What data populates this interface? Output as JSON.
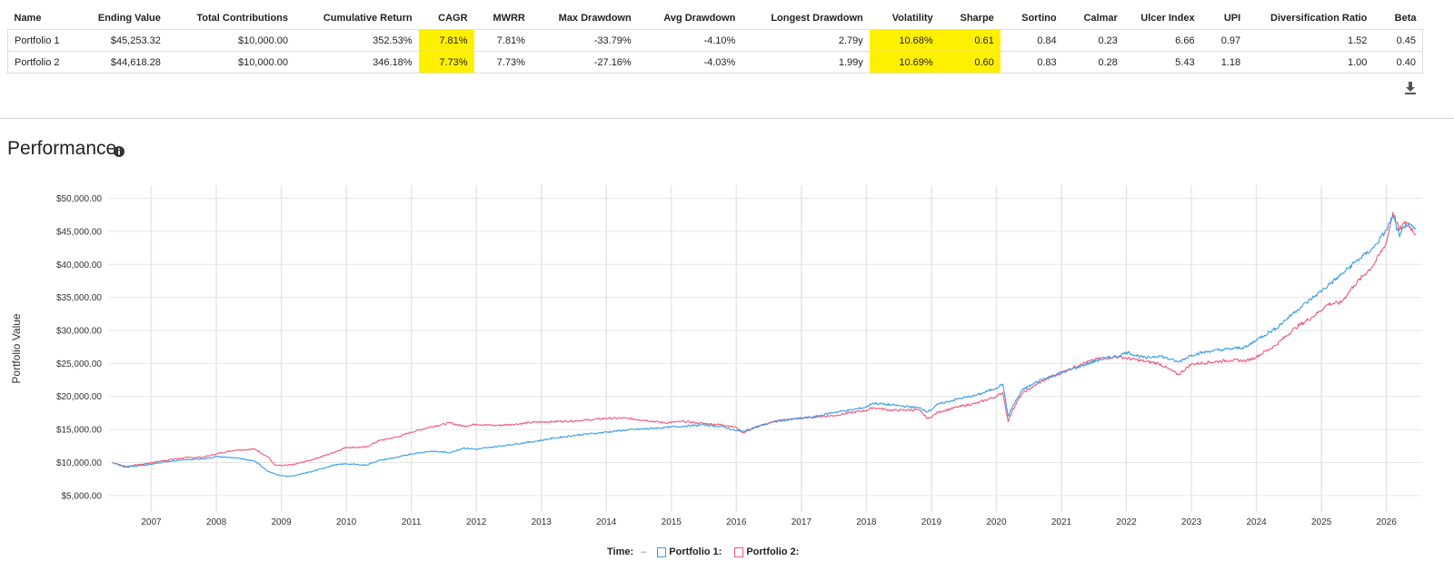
{
  "stats_table": {
    "columns": [
      "Name",
      "Ending Value",
      "Total Contributions",
      "Cumulative Return",
      "CAGR",
      "MWRR",
      "Max Drawdown",
      "Avg Drawdown",
      "Longest Drawdown",
      "Volatility",
      "Sharpe",
      "Sortino",
      "Calmar",
      "Ulcer Index",
      "UPI",
      "Diversification Ratio",
      "Beta"
    ],
    "highlighted_columns": [
      "CAGR",
      "Volatility",
      "Sharpe"
    ],
    "highlight_color": "#fff000",
    "rows": [
      [
        "Portfolio 1",
        "$45,253.32",
        "$10,000.00",
        "352.53%",
        "7.81%",
        "7.81%",
        "-33.79%",
        "-4.10%",
        "2.79y",
        "10.68%",
        "0.61",
        "0.84",
        "0.23",
        "6.66",
        "0.97",
        "1.52",
        "0.45"
      ],
      [
        "Portfolio 2",
        "$44,618.28",
        "$10,000.00",
        "346.18%",
        "7.73%",
        "7.73%",
        "-27.16%",
        "-4.03%",
        "1.99y",
        "10.69%",
        "0.60",
        "0.83",
        "0.28",
        "5.43",
        "1.18",
        "1.00",
        "0.40"
      ]
    ]
  },
  "icons": {
    "download": "download-icon",
    "info": "info-icon"
  },
  "performance": {
    "title": "Performance"
  },
  "legend": {
    "time_label": "Time:",
    "time_value": "–",
    "series": [
      "Portfolio 1:",
      "Portfolio 2:"
    ]
  },
  "chart_data": {
    "type": "line",
    "title": "Performance",
    "ylabel": "Portfolio Value",
    "xlabel": "",
    "xlim": [
      2006.35,
      2026.55
    ],
    "ylim": [
      2500,
      52000
    ],
    "yticks": [
      5000,
      10000,
      15000,
      20000,
      25000,
      30000,
      35000,
      40000,
      45000,
      50000
    ],
    "ytick_labels": [
      "$5,000.00",
      "$10,000.00",
      "$15,000.00",
      "$20,000.00",
      "$25,000.00",
      "$30,000.00",
      "$35,000.00",
      "$40,000.00",
      "$45,000.00",
      "$50,000.00"
    ],
    "xticks": [
      2007,
      2008,
      2009,
      2010,
      2011,
      2012,
      2013,
      2014,
      2015,
      2016,
      2017,
      2018,
      2019,
      2020,
      2021,
      2022,
      2023,
      2024,
      2025,
      2026
    ],
    "xtick_labels": [
      "2007",
      "2008",
      "2009",
      "2010",
      "2011",
      "2012",
      "2013",
      "2014",
      "2015",
      "2016",
      "2017",
      "2018",
      "2019",
      "2020",
      "2021",
      "2022",
      "2023",
      "2024",
      "2025",
      "2026"
    ],
    "grid": true,
    "series": [
      {
        "name": "Portfolio 1",
        "color": "#3a9ee4",
        "x": [
          2006.4,
          2006.6,
          2006.9,
          2007.2,
          2007.5,
          2007.8,
          2008.0,
          2008.3,
          2008.6,
          2008.8,
          2008.9,
          2009.0,
          2009.1,
          2009.2,
          2009.5,
          2009.8,
          2010.0,
          2010.3,
          2010.5,
          2010.8,
          2011.0,
          2011.3,
          2011.6,
          2011.8,
          2012.0,
          2012.3,
          2012.6,
          2012.9,
          2013.2,
          2013.5,
          2013.8,
          2014.0,
          2014.3,
          2014.6,
          2014.9,
          2015.2,
          2015.5,
          2015.8,
          2016.0,
          2016.1,
          2016.3,
          2016.6,
          2016.9,
          2017.2,
          2017.5,
          2017.8,
          2018.0,
          2018.1,
          2018.4,
          2018.8,
          2018.95,
          2019.1,
          2019.4,
          2019.7,
          2020.0,
          2020.1,
          2020.18,
          2020.25,
          2020.4,
          2020.7,
          2021.0,
          2021.3,
          2021.6,
          2021.9,
          2022.0,
          2022.3,
          2022.5,
          2022.8,
          2023.0,
          2023.3,
          2023.6,
          2023.85,
          2024.0,
          2024.3,
          2024.6,
          2024.9,
          2025.1,
          2025.3,
          2025.5,
          2025.8,
          2026.0,
          2026.1,
          2026.2,
          2026.3,
          2026.45
        ],
        "y": [
          10000,
          9300,
          9600,
          10100,
          10400,
          10500,
          10900,
          10700,
          10200,
          8600,
          8300,
          8000,
          7900,
          8000,
          8700,
          9600,
          9800,
          9600,
          10300,
          10800,
          11300,
          11700,
          11500,
          12200,
          12000,
          12400,
          12800,
          13200,
          13700,
          14100,
          14400,
          14600,
          14900,
          15100,
          15300,
          15500,
          15700,
          15400,
          14800,
          14700,
          15400,
          16200,
          16600,
          16900,
          17600,
          18000,
          18400,
          19000,
          18700,
          18300,
          17700,
          18800,
          19600,
          20200,
          21300,
          21900,
          17000,
          18500,
          21000,
          22600,
          23600,
          24600,
          25600,
          26200,
          26700,
          25800,
          26200,
          25200,
          26300,
          26900,
          27200,
          27500,
          28600,
          30300,
          32900,
          35200,
          36800,
          38400,
          40200,
          42500,
          45200,
          47400,
          44200,
          46100,
          45300
        ]
      },
      {
        "name": "Portfolio 2",
        "color": "#f1597a",
        "x": [
          2006.4,
          2006.6,
          2006.9,
          2007.2,
          2007.5,
          2007.8,
          2008.0,
          2008.3,
          2008.6,
          2008.8,
          2008.9,
          2009.0,
          2009.1,
          2009.2,
          2009.5,
          2009.8,
          2010.0,
          2010.3,
          2010.5,
          2010.8,
          2011.0,
          2011.3,
          2011.6,
          2011.8,
          2012.0,
          2012.3,
          2012.6,
          2012.9,
          2013.2,
          2013.5,
          2013.8,
          2014.0,
          2014.3,
          2014.6,
          2014.9,
          2015.2,
          2015.5,
          2015.8,
          2016.0,
          2016.1,
          2016.3,
          2016.6,
          2016.9,
          2017.2,
          2017.5,
          2017.8,
          2018.0,
          2018.1,
          2018.4,
          2018.8,
          2018.95,
          2019.1,
          2019.4,
          2019.7,
          2020.0,
          2020.1,
          2020.18,
          2020.25,
          2020.4,
          2020.7,
          2021.0,
          2021.3,
          2021.6,
          2021.9,
          2022.0,
          2022.3,
          2022.5,
          2022.8,
          2023.0,
          2023.3,
          2023.6,
          2023.85,
          2024.0,
          2024.3,
          2024.6,
          2024.9,
          2025.1,
          2025.3,
          2025.5,
          2025.8,
          2026.0,
          2026.1,
          2026.2,
          2026.3,
          2026.45
        ],
        "y": [
          10000,
          9400,
          9800,
          10300,
          10700,
          10800,
          11300,
          11900,
          12000,
          10800,
          9600,
          9500,
          9600,
          9700,
          10500,
          11500,
          12300,
          12300,
          13300,
          13900,
          14600,
          15400,
          16000,
          15500,
          15800,
          15600,
          15800,
          16100,
          16200,
          16300,
          16500,
          16700,
          16700,
          16400,
          16000,
          16200,
          15900,
          15700,
          15300,
          14500,
          15300,
          16300,
          16600,
          16900,
          17100,
          17600,
          17900,
          18300,
          17900,
          18000,
          16600,
          17600,
          18400,
          19000,
          20000,
          20600,
          16200,
          18000,
          20500,
          22300,
          23600,
          24900,
          25800,
          26000,
          25800,
          25300,
          25000,
          23300,
          24900,
          25200,
          25500,
          25400,
          26000,
          27800,
          30400,
          32300,
          34000,
          34200,
          36800,
          39900,
          43300,
          47900,
          45200,
          46500,
          44600
        ]
      }
    ]
  }
}
